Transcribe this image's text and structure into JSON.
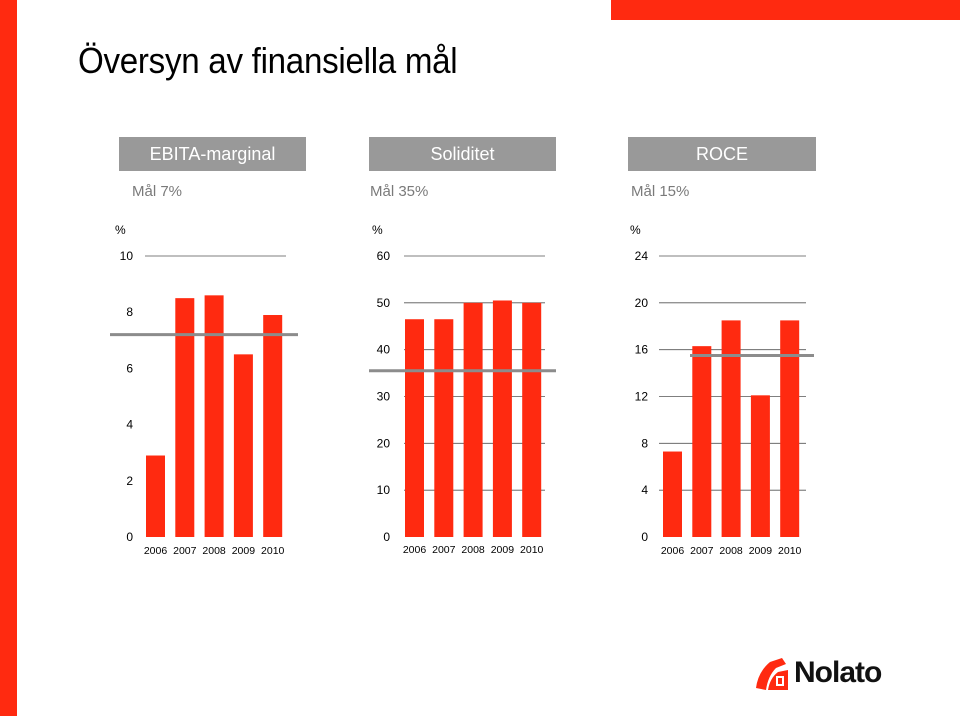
{
  "page": {
    "title": "Översyn av finansiella mål",
    "brand": "Nolato",
    "accent_color": "#ff2a10",
    "header_color": "#999999"
  },
  "chart_data": [
    {
      "type": "bar",
      "title": "EBITA-marginal",
      "goal_label": "Mål 7%",
      "target": 7.2,
      "unit_label": "%",
      "categories": [
        "2006",
        "2007",
        "2008",
        "2009",
        "2010"
      ],
      "values": [
        2.9,
        8.5,
        8.6,
        6.5,
        7.9
      ],
      "ylim": [
        0,
        10
      ],
      "yticks": [
        "0",
        "2",
        "4",
        "6",
        "8",
        "10"
      ]
    },
    {
      "type": "bar",
      "title": "Soliditet",
      "goal_label": "Mål 35%",
      "target": 35.5,
      "unit_label": "%",
      "categories": [
        "2006",
        "2007",
        "2008",
        "2009",
        "2010"
      ],
      "values": [
        46.5,
        46.5,
        50,
        50.5,
        50
      ],
      "ylim": [
        0,
        60
      ],
      "yticks": [
        "0",
        "10",
        "20",
        "30",
        "40",
        "50",
        "60"
      ]
    },
    {
      "type": "bar",
      "title": "ROCE",
      "goal_label": "Mål 15%",
      "target": 15.5,
      "unit_label": "%",
      "categories": [
        "2006",
        "2007",
        "2008",
        "2009",
        "2010"
      ],
      "values": [
        7.3,
        16.3,
        18.5,
        12.1,
        18.5
      ],
      "ylim": [
        0,
        24
      ],
      "yticks": [
        "0",
        "4",
        "8",
        "12",
        "16",
        "20",
        "24"
      ]
    }
  ]
}
